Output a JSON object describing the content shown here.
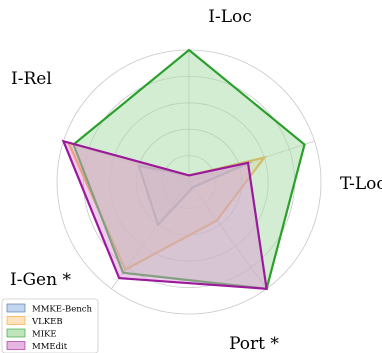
{
  "chart_data": {
    "type": "radar",
    "axes": [
      "I-Loc",
      "T-Loc",
      "Port *",
      "I-Gen *",
      "I-Rel"
    ],
    "rmax": 100,
    "rings": [
      20,
      40,
      60,
      80,
      100
    ],
    "grid": true,
    "legend_placement": "bottom-left",
    "series": [
      {
        "name": "MMKE-Bench",
        "values": [
          5,
          50,
          5,
          40,
          40
        ],
        "stroke": "#4a6fa5",
        "fill": "#aec7e8"
      },
      {
        "name": "VLKEB",
        "values": [
          5,
          60,
          36,
          82,
          96
        ],
        "stroke": "#ff9c2a",
        "fill": "#ffd8a8"
      },
      {
        "name": "MIKE",
        "values": [
          100,
          92,
          100,
          85,
          92
        ],
        "stroke": "#2ca02c",
        "fill": "#a8dca8"
      },
      {
        "name": "MMEdit",
        "values": [
          5,
          47,
          100,
          90,
          100
        ],
        "stroke": "#9b1a9b",
        "fill": "#dc9ed6"
      }
    ]
  }
}
